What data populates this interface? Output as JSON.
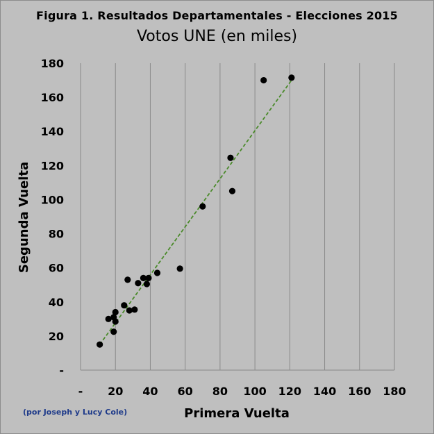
{
  "chart_data": {
    "type": "scatter",
    "title": "Figura 1. Resultados Departamentales  - Elecciones 2015",
    "subtitle": "Votos UNE (en miles)",
    "xlabel": "Primera Vuelta",
    "ylabel": "Segunda Vuelta",
    "xlim": [
      0,
      180
    ],
    "ylim": [
      0,
      180
    ],
    "x_ticks": [
      "-",
      "20",
      "40",
      "60",
      "80",
      "100",
      "120",
      "140",
      "160",
      "180"
    ],
    "y_ticks": [
      "-",
      "20",
      "40",
      "60",
      "80",
      "100",
      "120",
      "140",
      "160",
      "180"
    ],
    "grid": "vertical-major",
    "legend": "none",
    "point_color": "#000000",
    "trendline": {
      "style": "dashed",
      "color": "#4a8a2a",
      "from": [
        11,
        15
      ],
      "to": [
        121,
        170
      ]
    },
    "points": [
      {
        "x": 11,
        "y": 15
      },
      {
        "x": 16,
        "y": 30
      },
      {
        "x": 19,
        "y": 31
      },
      {
        "x": 19,
        "y": 22.5
      },
      {
        "x": 20,
        "y": 28.5
      },
      {
        "x": 20,
        "y": 34
      },
      {
        "x": 25,
        "y": 38
      },
      {
        "x": 27,
        "y": 53
      },
      {
        "x": 28,
        "y": 35
      },
      {
        "x": 31,
        "y": 35.5
      },
      {
        "x": 33,
        "y": 51
      },
      {
        "x": 36,
        "y": 54
      },
      {
        "x": 38,
        "y": 50.5
      },
      {
        "x": 39,
        "y": 54
      },
      {
        "x": 44,
        "y": 57
      },
      {
        "x": 57,
        "y": 59.5
      },
      {
        "x": 70,
        "y": 96
      },
      {
        "x": 86,
        "y": 124.5
      },
      {
        "x": 87,
        "y": 105
      },
      {
        "x": 105,
        "y": 170
      },
      {
        "x": 121,
        "y": 171.5
      }
    ]
  },
  "credit": "(por Joseph y Lucy Cole)"
}
